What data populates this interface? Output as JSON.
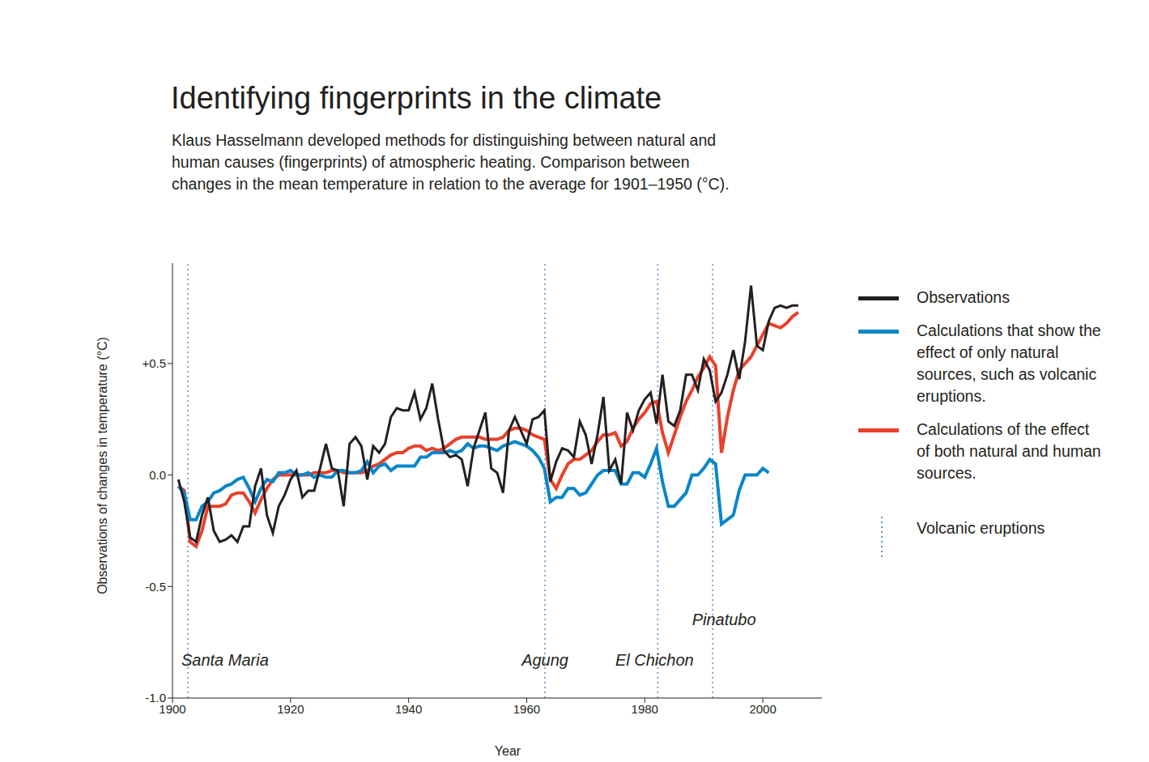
{
  "chart_data": {
    "type": "line",
    "title": "Identifying fingerprints in the climate",
    "subtitle": "Klaus Hasselmann developed methods for distinguishing between natural and human causes (fingerprints) of atmospheric heating. Comparison between changes in the mean temperature in relation to the average for 1901–1950 (°C).",
    "x_label": "Year",
    "y_label": "Observations of changes in temperature (°C)",
    "xlim": [
      1900,
      2010
    ],
    "xticks": [
      1900,
      1920,
      1940,
      1960,
      1980,
      2000
    ],
    "ylim": [
      -1.0,
      0.95
    ],
    "yticks": [
      {
        "value": -1.0,
        "label": "-1.0"
      },
      -0.5,
      {
        "value": 0,
        "label": "0.0"
      },
      {
        "value": 0.5,
        "label": "+0.5"
      }
    ],
    "grid": false,
    "legend": "right",
    "x": [
      1901,
      1902,
      1903,
      1904,
      1905,
      1906,
      1907,
      1908,
      1909,
      1910,
      1911,
      1912,
      1913,
      1914,
      1915,
      1916,
      1917,
      1918,
      1919,
      1920,
      1921,
      1922,
      1923,
      1924,
      1925,
      1926,
      1927,
      1928,
      1929,
      1930,
      1931,
      1932,
      1933,
      1934,
      1935,
      1936,
      1937,
      1938,
      1939,
      1940,
      1941,
      1942,
      1943,
      1944,
      1945,
      1946,
      1947,
      1948,
      1949,
      1950,
      1951,
      1952,
      1953,
      1954,
      1955,
      1956,
      1957,
      1958,
      1959,
      1960,
      1961,
      1962,
      1963,
      1964,
      1965,
      1966,
      1967,
      1968,
      1969,
      1970,
      1971,
      1972,
      1973,
      1974,
      1975,
      1976,
      1977,
      1978,
      1979,
      1980,
      1981,
      1982,
      1983,
      1984,
      1985,
      1986,
      1987,
      1988,
      1989,
      1990,
      1991,
      1992,
      1993,
      1994,
      1995,
      1996,
      1997,
      1998,
      1999,
      2000,
      2001,
      2002,
      2003,
      2004,
      2005,
      2006
    ],
    "series": [
      {
        "name": "Observations",
        "color": "#231f20",
        "values": [
          -0.02,
          -0.12,
          -0.28,
          -0.3,
          -0.18,
          -0.1,
          -0.25,
          -0.3,
          -0.29,
          -0.27,
          -0.3,
          -0.23,
          -0.23,
          -0.05,
          0.03,
          -0.18,
          -0.26,
          -0.14,
          -0.09,
          -0.02,
          0.02,
          -0.1,
          -0.07,
          -0.07,
          0.03,
          0.14,
          0.03,
          0.02,
          -0.14,
          0.14,
          0.17,
          0.13,
          -0.02,
          0.13,
          0.1,
          0.14,
          0.26,
          0.3,
          0.29,
          0.29,
          0.37,
          0.25,
          0.3,
          0.41,
          0.25,
          0.11,
          0.08,
          0.09,
          0.07,
          -0.05,
          0.12,
          0.2,
          0.28,
          0.03,
          0.01,
          -0.08,
          0.2,
          0.26,
          0.2,
          0.14,
          0.25,
          0.26,
          0.29,
          -0.03,
          0.06,
          0.12,
          0.11,
          0.08,
          0.24,
          0.18,
          0.05,
          0.18,
          0.35,
          0.02,
          0.07,
          -0.04,
          0.28,
          0.2,
          0.29,
          0.34,
          0.37,
          0.23,
          0.45,
          0.24,
          0.22,
          0.29,
          0.45,
          0.45,
          0.38,
          0.52,
          0.47,
          0.33,
          0.37,
          0.45,
          0.56,
          0.43,
          0.6,
          0.85,
          0.58,
          0.56,
          0.69,
          0.75,
          0.76,
          0.75,
          0.76,
          0.76
        ]
      },
      {
        "name": "Calculations that show the effect of only natural sources, such as volcanic eruptions.",
        "color": "#0a86c8",
        "values": [
          -0.05,
          -0.08,
          -0.2,
          -0.2,
          -0.14,
          -0.12,
          -0.08,
          -0.07,
          -0.05,
          -0.04,
          -0.02,
          -0.01,
          -0.06,
          -0.12,
          -0.06,
          -0.02,
          -0.03,
          0.01,
          0.01,
          0.02,
          0.0,
          0.0,
          0.01,
          -0.01,
          0.0,
          -0.01,
          -0.01,
          0.02,
          0.02,
          0.01,
          0.01,
          0.02,
          0.06,
          0.01,
          0.04,
          0.05,
          0.02,
          0.04,
          0.04,
          0.04,
          0.04,
          0.08,
          0.08,
          0.1,
          0.1,
          0.1,
          0.11,
          0.1,
          0.11,
          0.14,
          0.12,
          0.13,
          0.13,
          0.12,
          0.11,
          0.13,
          0.14,
          0.15,
          0.14,
          0.13,
          0.11,
          0.08,
          0.03,
          -0.12,
          -0.1,
          -0.1,
          -0.06,
          -0.06,
          -0.09,
          -0.08,
          -0.04,
          0.0,
          0.02,
          0.02,
          0.02,
          -0.04,
          -0.04,
          0.01,
          0.01,
          -0.01,
          0.05,
          0.12,
          -0.03,
          -0.14,
          -0.14,
          -0.11,
          -0.08,
          0.0,
          0.0,
          0.03,
          0.07,
          0.05,
          -0.22,
          -0.2,
          -0.18,
          -0.07,
          0.0,
          0.0,
          0.0,
          0.03,
          0.01,
          null,
          null,
          null,
          null,
          null
        ]
      },
      {
        "name": "Calculations of the effect of both natural and human sources.",
        "color": "#e8412c",
        "values": [
          -0.05,
          -0.07,
          -0.3,
          -0.32,
          -0.25,
          -0.14,
          -0.14,
          -0.14,
          -0.13,
          -0.09,
          -0.08,
          -0.08,
          -0.12,
          -0.17,
          -0.11,
          -0.06,
          -0.02,
          0.0,
          0.0,
          0.0,
          0.0,
          0.0,
          0.0,
          0.01,
          0.01,
          0.01,
          0.02,
          0.02,
          0.01,
          0.01,
          0.01,
          0.01,
          0.02,
          0.04,
          0.05,
          0.07,
          0.09,
          0.1,
          0.1,
          0.12,
          0.13,
          0.13,
          0.11,
          0.12,
          0.11,
          0.12,
          0.14,
          0.16,
          0.17,
          0.17,
          0.17,
          0.17,
          0.16,
          0.16,
          0.16,
          0.17,
          0.2,
          0.21,
          0.21,
          0.2,
          0.18,
          0.17,
          0.16,
          -0.02,
          -0.06,
          0.0,
          0.05,
          0.07,
          0.07,
          0.09,
          0.11,
          0.15,
          0.18,
          0.18,
          0.19,
          0.13,
          0.15,
          0.21,
          0.25,
          0.28,
          0.32,
          0.33,
          0.19,
          0.1,
          0.18,
          0.26,
          0.33,
          0.38,
          0.44,
          0.48,
          0.53,
          0.49,
          0.1,
          0.26,
          0.38,
          0.47,
          0.5,
          0.53,
          0.58,
          0.63,
          0.68,
          0.67,
          0.66,
          0.68,
          0.71,
          0.73
        ]
      }
    ],
    "volcanoes": {
      "name": "Volcanic eruptions",
      "color": "#5b8fbf",
      "line_style": "dotted",
      "events": [
        {
          "label": "Santa Maria",
          "x": 1902.6
        },
        {
          "label": "Agung",
          "x": 1963.1
        },
        {
          "label": "El Chichon",
          "x": 1982.2
        },
        {
          "label": "Pinatubo",
          "x": 1991.5
        }
      ]
    }
  }
}
